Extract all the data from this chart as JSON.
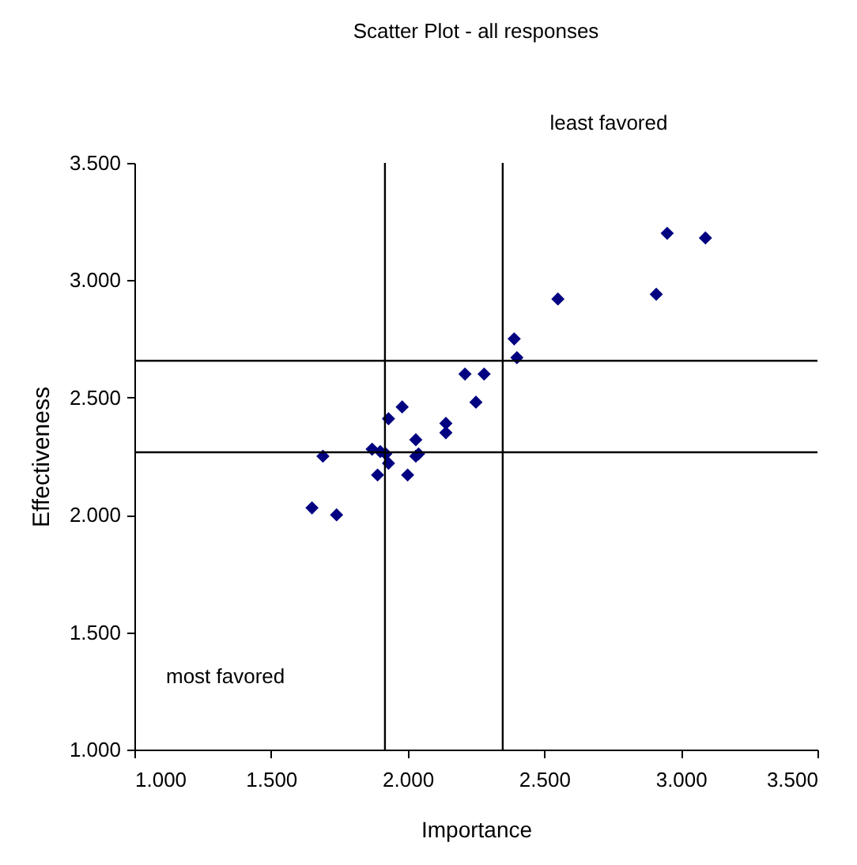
{
  "chart_data": {
    "type": "scatter",
    "title": "Scatter Plot - all responses",
    "xlabel": "Importance",
    "ylabel": "Effectiveness",
    "annotations": [
      "least favored",
      "most favored"
    ],
    "x": [
      1.65,
      1.74,
      1.69,
      1.87,
      1.9,
      1.92,
      1.93,
      1.89,
      1.93,
      1.98,
      2.0,
      2.03,
      2.03,
      2.04,
      2.14,
      2.14,
      2.21,
      2.28,
      2.25,
      2.39,
      2.4,
      2.55,
      2.91,
      2.95,
      3.09
    ],
    "series": [
      {
        "color": "#000080",
        "values": [
          2.03,
          2.0,
          2.25,
          2.28,
          2.27,
          2.26,
          2.22,
          2.17,
          2.41,
          2.46,
          2.17,
          2.32,
          2.25,
          2.26,
          2.39,
          2.35,
          2.6,
          2.6,
          2.48,
          2.75,
          2.67,
          2.92,
          2.94,
          3.2,
          3.18
        ]
      }
    ],
    "xlim": [
      1,
      3.5
    ],
    "ylim": [
      1,
      3.5
    ],
    "xticks": [
      {
        "value": 1,
        "label": "1.000"
      },
      {
        "value": 1.5,
        "label": "1.500"
      },
      {
        "value": 2,
        "label": "2.000"
      },
      {
        "value": 2.5,
        "label": "2.500"
      },
      {
        "value": 3,
        "label": "3.000"
      },
      {
        "value": 3.5,
        "label": "3.500"
      }
    ],
    "yticks": [
      {
        "value": 1,
        "label": "1.000"
      },
      {
        "value": 1.5,
        "label": "1.500"
      },
      {
        "value": 2,
        "label": "2.000"
      },
      {
        "value": 2.5,
        "label": "2.500"
      },
      {
        "value": 3,
        "label": "3.000"
      },
      {
        "value": 3.5,
        "label": "3.500"
      }
    ],
    "ref_lines": [
      {
        "axis": "x",
        "value": 1.917,
        "color": "#000000"
      },
      {
        "axis": "x",
        "value": 2.348,
        "color": "#000000"
      },
      {
        "axis": "y",
        "value": 2.657,
        "color": "#000000"
      },
      {
        "axis": "y",
        "value": 2.267,
        "color": "#000000"
      }
    ],
    "grid": false,
    "marker": "diamond"
  }
}
